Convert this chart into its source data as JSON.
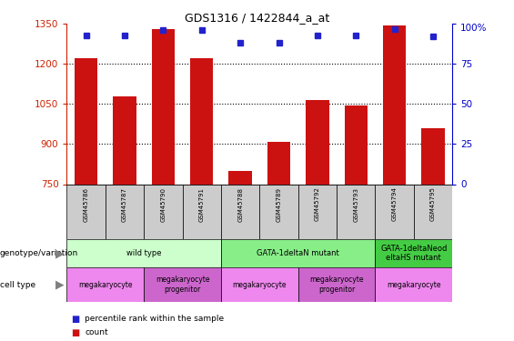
{
  "title": "GDS1316 / 1422844_a_at",
  "samples": [
    "GSM45786",
    "GSM45787",
    "GSM45790",
    "GSM45791",
    "GSM45788",
    "GSM45789",
    "GSM45792",
    "GSM45793",
    "GSM45794",
    "GSM45795"
  ],
  "counts": [
    1220,
    1080,
    1330,
    1220,
    800,
    910,
    1065,
    1045,
    1345,
    960
  ],
  "percentiles": [
    93,
    93,
    96,
    96,
    88,
    88,
    93,
    93,
    97,
    92
  ],
  "ylim_left": [
    750,
    1350
  ],
  "ylim_right": [
    0,
    100
  ],
  "yticks_left": [
    750,
    900,
    1050,
    1200,
    1350
  ],
  "yticks_right": [
    0,
    25,
    50,
    75,
    100
  ],
  "genotype_groups": [
    {
      "label": "wild type",
      "start": 0,
      "end": 4,
      "color": "#ccffcc"
    },
    {
      "label": "GATA-1deltaN mutant",
      "start": 4,
      "end": 8,
      "color": "#88ee88"
    },
    {
      "label": "GATA-1deltaNeod\neltaHS mutant",
      "start": 8,
      "end": 10,
      "color": "#44cc44"
    }
  ],
  "cell_type_groups": [
    {
      "label": "megakaryocyte",
      "start": 0,
      "end": 2,
      "color": "#ee88ee"
    },
    {
      "label": "megakaryocyte\nprogenitor",
      "start": 2,
      "end": 4,
      "color": "#cc66cc"
    },
    {
      "label": "megakaryocyte",
      "start": 4,
      "end": 6,
      "color": "#ee88ee"
    },
    {
      "label": "megakaryocyte\nprogenitor",
      "start": 6,
      "end": 8,
      "color": "#cc66cc"
    },
    {
      "label": "megakaryocyte",
      "start": 8,
      "end": 10,
      "color": "#ee88ee"
    }
  ],
  "bar_color": "#cc1111",
  "dot_color": "#2222cc",
  "label_color_left": "#cc2200",
  "label_color_right": "#0000cc",
  "grid_dotted_ticks": [
    900,
    1050,
    1200
  ],
  "right_pct_label": "100%"
}
